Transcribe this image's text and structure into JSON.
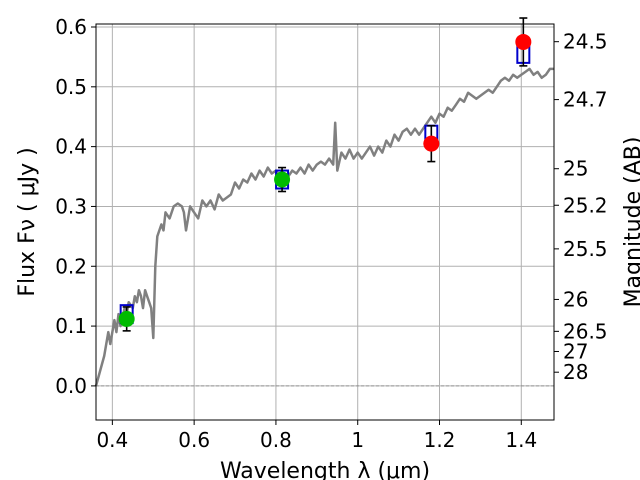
{
  "chart_data": {
    "type": "scatter",
    "xlabel": "Wavelength  λ (μm)",
    "ylabel": "Flux  Fν  ( μJy )",
    "ylabel_right": "Magnitude (AB)",
    "xlim": [
      0.36,
      1.48
    ],
    "ylim": [
      -0.057,
      0.605
    ],
    "grid": true,
    "x_ticks": [
      "0.4",
      "0.6",
      "0.8",
      "1",
      "1.2",
      "1.4"
    ],
    "x_tick_values": [
      0.4,
      0.6,
      0.8,
      1.0,
      1.2,
      1.4
    ],
    "y_ticks": [
      "0.0",
      "0.1",
      "0.2",
      "0.3",
      "0.4",
      "0.5",
      "0.6"
    ],
    "y_tick_values": [
      0.0,
      0.1,
      0.2,
      0.3,
      0.4,
      0.5,
      0.6
    ],
    "right_ticks": [
      "24.5",
      "24.7",
      "25",
      "25.2",
      "25.5",
      "26",
      "26.5",
      "27",
      "28"
    ],
    "right_tick_values": [
      24.5,
      24.7,
      25.0,
      25.2,
      25.5,
      26.0,
      26.5,
      27.0,
      28.0
    ],
    "series": [
      {
        "kind": "line",
        "color": "#808080",
        "points": [
          [
            0.36,
            0.0
          ],
          [
            0.38,
            0.05
          ],
          [
            0.39,
            0.09
          ],
          [
            0.395,
            0.07
          ],
          [
            0.405,
            0.11
          ],
          [
            0.41,
            0.09
          ],
          [
            0.415,
            0.12
          ],
          [
            0.42,
            0.1
          ],
          [
            0.43,
            0.13
          ],
          [
            0.435,
            0.12
          ],
          [
            0.44,
            0.14
          ],
          [
            0.45,
            0.13
          ],
          [
            0.455,
            0.15
          ],
          [
            0.46,
            0.14
          ],
          [
            0.465,
            0.16
          ],
          [
            0.47,
            0.15
          ],
          [
            0.475,
            0.13
          ],
          [
            0.48,
            0.16
          ],
          [
            0.485,
            0.15
          ],
          [
            0.49,
            0.14
          ],
          [
            0.495,
            0.13
          ],
          [
            0.5,
            0.08
          ],
          [
            0.505,
            0.2
          ],
          [
            0.51,
            0.25
          ],
          [
            0.52,
            0.27
          ],
          [
            0.525,
            0.26
          ],
          [
            0.53,
            0.29
          ],
          [
            0.54,
            0.28
          ],
          [
            0.55,
            0.3
          ],
          [
            0.56,
            0.305
          ],
          [
            0.57,
            0.3
          ],
          [
            0.575,
            0.29
          ],
          [
            0.58,
            0.26
          ],
          [
            0.59,
            0.3
          ],
          [
            0.6,
            0.29
          ],
          [
            0.61,
            0.28
          ],
          [
            0.62,
            0.31
          ],
          [
            0.63,
            0.3
          ],
          [
            0.64,
            0.31
          ],
          [
            0.65,
            0.295
          ],
          [
            0.66,
            0.32
          ],
          [
            0.67,
            0.31
          ],
          [
            0.68,
            0.315
          ],
          [
            0.69,
            0.32
          ],
          [
            0.7,
            0.34
          ],
          [
            0.71,
            0.33
          ],
          [
            0.72,
            0.345
          ],
          [
            0.73,
            0.34
          ],
          [
            0.74,
            0.355
          ],
          [
            0.75,
            0.345
          ],
          [
            0.76,
            0.36
          ],
          [
            0.77,
            0.35
          ],
          [
            0.78,
            0.365
          ],
          [
            0.79,
            0.355
          ],
          [
            0.8,
            0.36
          ],
          [
            0.81,
            0.35
          ],
          [
            0.82,
            0.34
          ],
          [
            0.83,
            0.35
          ],
          [
            0.84,
            0.36
          ],
          [
            0.85,
            0.355
          ],
          [
            0.86,
            0.365
          ],
          [
            0.87,
            0.355
          ],
          [
            0.88,
            0.37
          ],
          [
            0.89,
            0.36
          ],
          [
            0.9,
            0.37
          ],
          [
            0.91,
            0.375
          ],
          [
            0.92,
            0.37
          ],
          [
            0.93,
            0.38
          ],
          [
            0.94,
            0.37
          ],
          [
            0.945,
            0.44
          ],
          [
            0.95,
            0.36
          ],
          [
            0.96,
            0.39
          ],
          [
            0.97,
            0.38
          ],
          [
            0.98,
            0.395
          ],
          [
            0.99,
            0.38
          ],
          [
            1.0,
            0.39
          ],
          [
            1.01,
            0.38
          ],
          [
            1.02,
            0.39
          ],
          [
            1.03,
            0.4
          ],
          [
            1.04,
            0.385
          ],
          [
            1.05,
            0.4
          ],
          [
            1.06,
            0.39
          ],
          [
            1.07,
            0.41
          ],
          [
            1.08,
            0.4
          ],
          [
            1.09,
            0.42
          ],
          [
            1.1,
            0.41
          ],
          [
            1.11,
            0.425
          ],
          [
            1.12,
            0.43
          ],
          [
            1.13,
            0.42
          ],
          [
            1.14,
            0.43
          ],
          [
            1.15,
            0.42
          ],
          [
            1.16,
            0.43
          ],
          [
            1.17,
            0.44
          ],
          [
            1.18,
            0.45
          ],
          [
            1.19,
            0.44
          ],
          [
            1.2,
            0.455
          ],
          [
            1.21,
            0.45
          ],
          [
            1.22,
            0.465
          ],
          [
            1.23,
            0.46
          ],
          [
            1.24,
            0.47
          ],
          [
            1.25,
            0.48
          ],
          [
            1.26,
            0.475
          ],
          [
            1.27,
            0.49
          ],
          [
            1.28,
            0.485
          ],
          [
            1.29,
            0.48
          ],
          [
            1.3,
            0.485
          ],
          [
            1.31,
            0.49
          ],
          [
            1.32,
            0.495
          ],
          [
            1.33,
            0.49
          ],
          [
            1.34,
            0.5
          ],
          [
            1.35,
            0.51
          ],
          [
            1.36,
            0.515
          ],
          [
            1.37,
            0.51
          ],
          [
            1.38,
            0.52
          ],
          [
            1.39,
            0.515
          ],
          [
            1.4,
            0.52
          ],
          [
            1.41,
            0.525
          ],
          [
            1.42,
            0.53
          ],
          [
            1.43,
            0.52
          ],
          [
            1.44,
            0.525
          ],
          [
            1.45,
            0.515
          ],
          [
            1.46,
            0.52
          ],
          [
            1.47,
            0.53
          ],
          [
            1.48,
            0.53
          ]
        ]
      },
      {
        "kind": "boxes",
        "color": "#0000cc",
        "points": [
          {
            "x": 0.435,
            "y": 0.12,
            "half_h": 0.015
          },
          {
            "x": 0.815,
            "y": 0.345,
            "half_h": 0.015
          },
          {
            "x": 1.18,
            "y": 0.42,
            "half_h": 0.015
          },
          {
            "x": 1.405,
            "y": 0.555,
            "half_h": 0.015
          }
        ]
      },
      {
        "kind": "points",
        "points": [
          {
            "x": 0.435,
            "y": 0.112,
            "err": 0.02,
            "color": "#00bb00"
          },
          {
            "x": 0.815,
            "y": 0.345,
            "err": 0.02,
            "color": "#00bb00"
          },
          {
            "x": 1.18,
            "y": 0.405,
            "err": 0.03,
            "color": "#ff0000"
          },
          {
            "x": 1.405,
            "y": 0.575,
            "err": 0.04,
            "color": "#ff0000"
          }
        ]
      }
    ]
  }
}
